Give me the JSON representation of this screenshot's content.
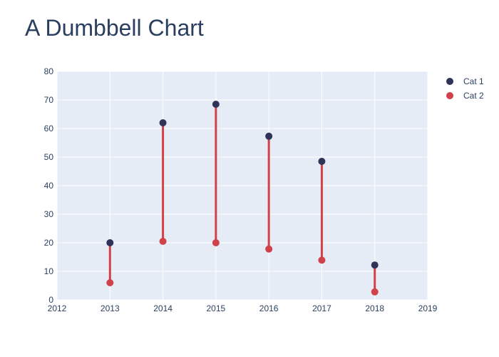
{
  "chart_data": {
    "type": "scatter",
    "title": "A Dumbbell Chart",
    "xlabel": "",
    "ylabel": "",
    "xlim": [
      2012,
      2019
    ],
    "ylim": [
      0,
      80
    ],
    "x_ticks": [
      "2012",
      "2013",
      "2014",
      "2015",
      "2016",
      "2017",
      "2018",
      "2019"
    ],
    "y_ticks": [
      "0",
      "10",
      "20",
      "30",
      "40",
      "50",
      "60",
      "70",
      "80"
    ],
    "grid": true,
    "legend_position": "top-right",
    "x": [
      2013,
      2014,
      2015,
      2016,
      2017,
      2018
    ],
    "series": [
      {
        "name": "Cat 1",
        "color": "#2f3358",
        "values": [
          20,
          62,
          68.5,
          57.3,
          48.5,
          12.2
        ]
      },
      {
        "name": "Cat 2",
        "color": "#d1414a",
        "values": [
          6,
          20.5,
          20,
          17.8,
          13.9,
          2.8
        ]
      }
    ],
    "connector_color": "#d1414a"
  }
}
